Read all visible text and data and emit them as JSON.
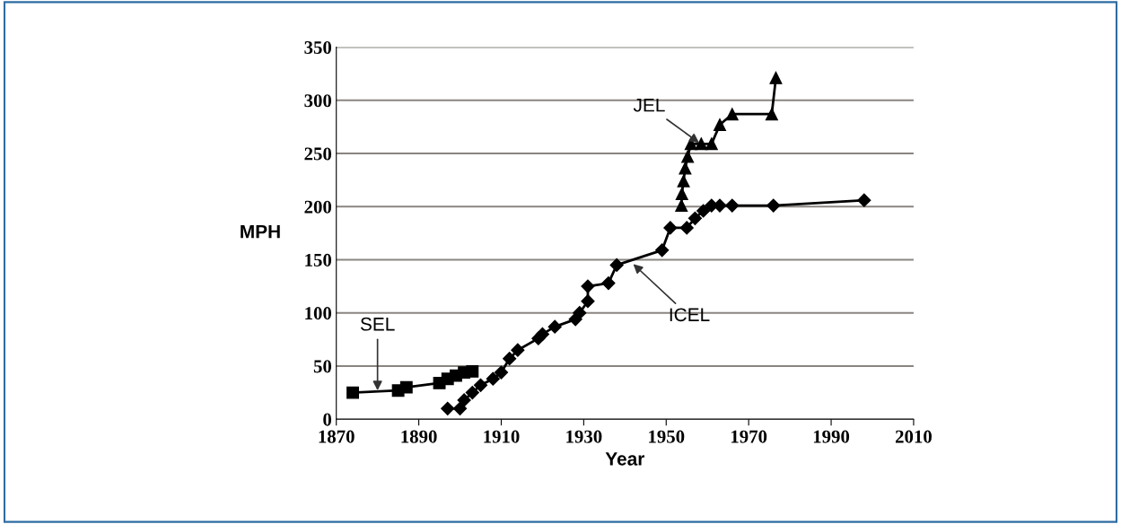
{
  "chart_data": {
    "type": "line",
    "xlabel": "Year",
    "ylabel": "MPH",
    "xlim": [
      1870,
      2010
    ],
    "xticks": [
      1870,
      1890,
      1910,
      1930,
      1950,
      1970,
      1990,
      2010
    ],
    "ylim": [
      0,
      350
    ],
    "yticks": [
      0,
      50,
      100,
      150,
      200,
      250,
      300,
      350
    ],
    "grid": "y",
    "legend": false,
    "line_style": "solid",
    "series": [
      {
        "color": "#000000",
        "marker": "square",
        "x": [
          1874,
          1885,
          1887,
          1895,
          1897,
          1899,
          1901,
          1903
        ],
        "values": [
          25,
          27,
          30,
          34,
          38,
          41,
          44,
          45
        ]
      },
      {
        "color": "#000000",
        "marker": "diamond",
        "x": [
          1897,
          1900,
          1901,
          1903,
          1905,
          1908,
          1910,
          1912,
          1914,
          1919,
          1920,
          1923,
          1928,
          1929,
          1931,
          1931,
          1936,
          1938,
          1949,
          1951,
          1955,
          1957,
          1959,
          1961,
          1963,
          1966,
          1976,
          1998
        ],
        "values": [
          10,
          10,
          18,
          25,
          32,
          38,
          44,
          57,
          65,
          76,
          80,
          87,
          94,
          100,
          111,
          125,
          128,
          145,
          159,
          180,
          180,
          189,
          196,
          201,
          201,
          201,
          201,
          206
        ]
      },
      {
        "color": "#000000",
        "marker": "triangle",
        "x": [
          1953.7,
          1953.8,
          1954.2,
          1954.6,
          1955.2,
          1956,
          1958.5,
          1961,
          1963,
          1966,
          1975.6,
          1976.6
        ],
        "values": [
          201,
          212,
          224,
          236,
          247,
          259,
          259,
          259,
          277,
          287,
          287,
          321
        ]
      }
    ],
    "annotations": [
      {
        "text": "SEL",
        "x": 1880,
        "y": 27
      },
      {
        "text": "JEL",
        "x": 1958,
        "y": 260
      },
      {
        "text": "ICEL",
        "x": 1942,
        "y": 146
      }
    ]
  }
}
